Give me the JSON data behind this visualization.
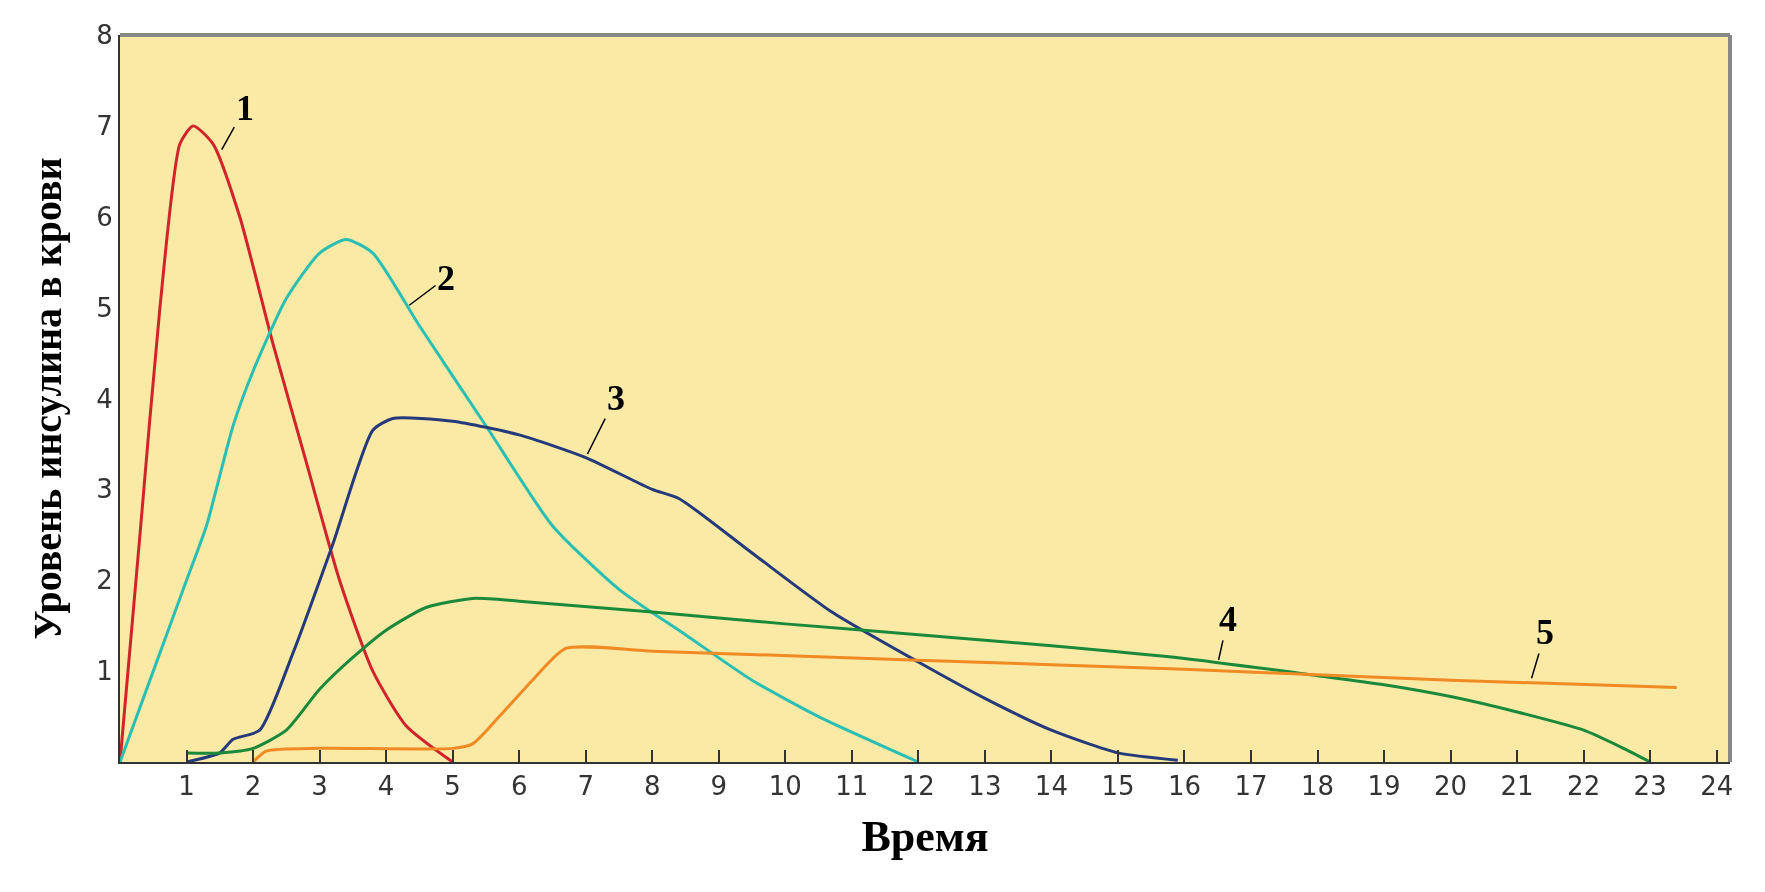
{
  "chart_data": {
    "type": "line",
    "xlabel": "Время",
    "ylabel": "Уровень инсулина в крови",
    "xlim": [
      0,
      24.2
    ],
    "ylim": [
      0,
      8
    ],
    "xticks": [
      1,
      2,
      3,
      4,
      5,
      6,
      7,
      8,
      9,
      10,
      11,
      12,
      13,
      14,
      15,
      16,
      17,
      18,
      19,
      20,
      21,
      22,
      23,
      24
    ],
    "yticks": [
      1,
      2,
      3,
      4,
      5,
      6,
      7,
      8
    ],
    "grid": false,
    "marker": "none",
    "line_style": "solid",
    "series": [
      {
        "color": "#d2232a",
        "x": [
          0,
          0.3,
          0.6,
          0.9,
          1.1,
          1.4,
          1.8,
          2.3,
          2.8,
          3.3,
          3.8,
          4.3,
          5
        ],
        "values": [
          0,
          2.5,
          5,
          6.8,
          7,
          6.8,
          6,
          4.6,
          3.3,
          2,
          1,
          0.4,
          0
        ]
      },
      {
        "color": "#2bbfb3",
        "x": [
          0,
          0.5,
          1,
          1.3,
          1.7,
          2,
          2.5,
          3,
          3.4,
          3.8,
          4.5,
          5.5,
          6.5,
          7.5,
          8.5,
          9.5,
          10.5,
          12
        ],
        "values": [
          0,
          1,
          2,
          2.6,
          3.7,
          4.3,
          5.1,
          5.6,
          5.75,
          5.6,
          4.8,
          3.7,
          2.6,
          1.9,
          1.4,
          0.9,
          0.5,
          0
        ]
      },
      {
        "color": "#253a7a",
        "x": [
          1,
          1.5,
          1.7,
          2.1,
          2.6,
          3.2,
          3.8,
          4.1,
          5,
          6,
          7,
          8,
          8.4,
          9.5,
          10.7,
          12,
          13,
          14,
          15,
          15.9
        ],
        "values": [
          0,
          0.1,
          0.25,
          0.35,
          1.2,
          2.4,
          3.65,
          3.78,
          3.75,
          3.6,
          3.35,
          3,
          2.9,
          2.3,
          1.65,
          1.1,
          0.7,
          0.35,
          0.1,
          0.02
        ]
      },
      {
        "color": "#1a8a3a",
        "x": [
          1,
          1.5,
          2,
          2.5,
          3,
          3.5,
          4,
          4.6,
          5.3,
          6,
          8,
          10,
          12,
          14,
          16,
          18,
          19,
          20,
          21,
          22,
          22.6,
          23
        ],
        "values": [
          0.1,
          0.1,
          0.15,
          0.35,
          0.8,
          1.15,
          1.45,
          1.7,
          1.8,
          1.77,
          1.65,
          1.52,
          1.4,
          1.28,
          1.14,
          0.95,
          0.85,
          0.72,
          0.55,
          0.35,
          0.15,
          0
        ]
      },
      {
        "color": "#f08a24",
        "x": [
          2,
          2.2,
          3,
          5,
          5.3,
          5.7,
          6.2,
          6.7,
          8,
          12,
          16,
          20,
          23.4
        ],
        "values": [
          0,
          0.12,
          0.15,
          0.15,
          0.2,
          0.5,
          0.9,
          1.25,
          1.22,
          1.12,
          1.02,
          0.9,
          0.82
        ]
      }
    ],
    "annotations": [
      {
        "text": "1",
        "x": 1.5,
        "y": 6.7
      },
      {
        "text": "2",
        "x": 4.3,
        "y": 5.0
      },
      {
        "text": "3",
        "x": 7.0,
        "y": 3.35
      },
      {
        "text": "4",
        "x": 16.5,
        "y": 1.08
      },
      {
        "text": "5",
        "x": 21.2,
        "y": 0.88
      }
    ]
  }
}
